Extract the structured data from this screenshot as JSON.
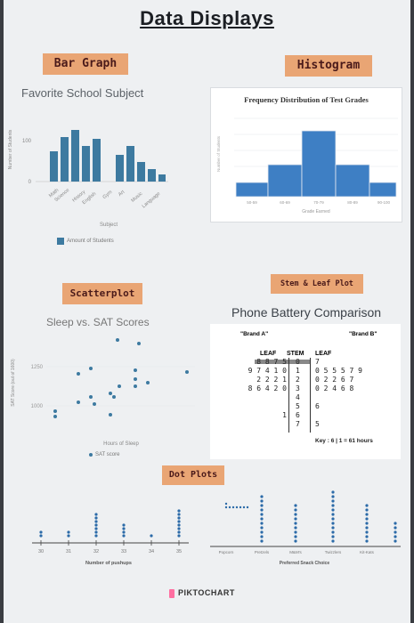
{
  "poster": {
    "title": "Data Displays",
    "footer_brand": "PIKTOCHART",
    "accent_color": "#2b6aa8",
    "tag_color": "#e9a574",
    "highlight_color": "#ff6fa1"
  },
  "bar_graph": {
    "tag": "Bar Graph",
    "title": "Favorite School Subject",
    "ylabel": "Number of Students",
    "xlabel": "Subject",
    "legend": "Amount of Students",
    "ytick_labels": [
      "100",
      "0"
    ],
    "categories": [
      "Math",
      "Science",
      "History",
      "English",
      "Gym",
      "Art",
      "Music",
      "Language"
    ]
  },
  "histogram": {
    "tag": "Histogram",
    "title": "Frequency Distribution of Test Grades",
    "xlabel": "Grade Earned",
    "bin_labels": [
      "60-69",
      "70-79",
      "80-89",
      "90-100"
    ]
  },
  "scatter": {
    "tag": "Scatterplot",
    "title": "Sleep vs. SAT Scores",
    "ylabel": "SAT Score (out of 1600)",
    "xlabel": "Hours of Sleep",
    "legend": "SAT score",
    "ytick_labels": [
      "1250",
      "1000"
    ]
  },
  "stem_leaf": {
    "tag": "Stem & Leaf Plot",
    "title": "Phone Battery Comparison",
    "brand_a": "\"Brand A\"",
    "brand_b": "\"Brand B\"",
    "col_leaf_left": "LEAF",
    "col_stem": "STEM",
    "col_leaf_right": "LEAF",
    "rows": [
      {
        "left": "8 8 7 5",
        "stem": "0",
        "right": "7"
      },
      {
        "left": "9 7 4 1 0",
        "stem": "1",
        "right": "0 5 5 5 7 9"
      },
      {
        "left": "2 2 2 1",
        "stem": "2",
        "right": "0 2 2 6 7"
      },
      {
        "left": "8 6 4 2 0",
        "stem": "3",
        "right": "0 2 4 6 8"
      },
      {
        "left": "",
        "stem": "4",
        "right": ""
      },
      {
        "left": "",
        "stem": "5",
        "right": "6"
      },
      {
        "left": "1",
        "stem": "6",
        "right": ""
      },
      {
        "left": "",
        "stem": "7",
        "right": "5"
      }
    ],
    "key": "Key : 6 | 1 = 61 hours"
  },
  "dot_plots": {
    "tag": "Dot Plots",
    "plot1": {
      "xlabel": "Number of pushups",
      "tick_labels": [
        "30",
        "31",
        "32",
        "33",
        "34",
        "35"
      ]
    },
    "plot2": {
      "xlabel": "Preferred Snack Choice",
      "tick_labels": [
        "Popcorn",
        "Pretzels",
        "M&M's",
        "Twizzlers",
        "Kit-Kats"
      ]
    }
  }
}
